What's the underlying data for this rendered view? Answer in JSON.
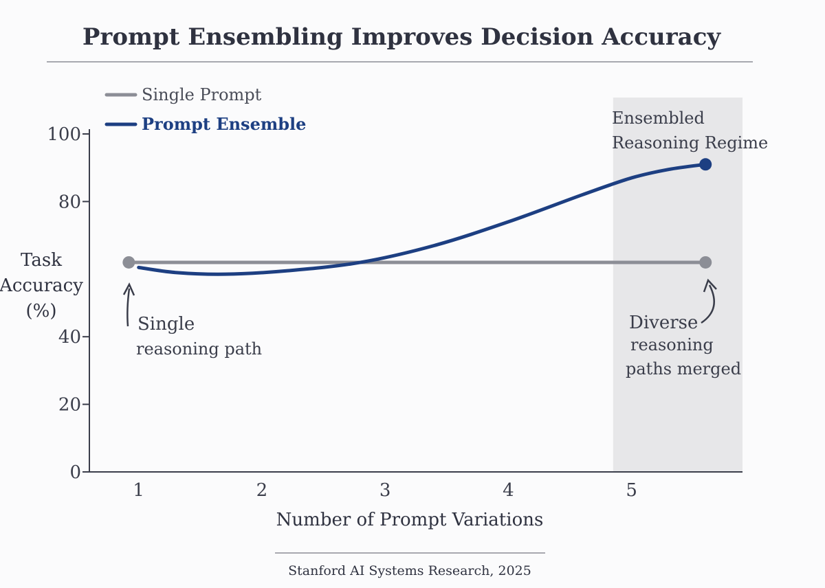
{
  "chart_data": {
    "type": "line",
    "title": "Prompt Ensembling Improves Decision Accuracy",
    "xlabel": "Number of Prompt Variations",
    "ylabel_lines": [
      "Task",
      "Accuracy",
      "(%)"
    ],
    "x_ticks": [
      "1",
      "2",
      "3",
      "4",
      "5"
    ],
    "y_ticks": [
      "100",
      "80",
      "40",
      "20",
      "0"
    ],
    "y_tick_values": [
      100,
      80,
      40,
      20,
      0
    ],
    "xlim": [
      0.6,
      5.9
    ],
    "ylim": [
      0,
      100
    ],
    "legend_position": "top-left",
    "grid": false,
    "series": [
      {
        "name": "Single Prompt",
        "color": "#8c8e96",
        "x": [
          0.92,
          5.6
        ],
        "y": [
          62,
          62
        ]
      },
      {
        "name": "Prompt Ensemble",
        "color": "#1d3f82",
        "x": [
          1.0,
          1.3,
          1.7,
          2.2,
          2.8,
          3.4,
          4.0,
          4.6,
          5.0,
          5.3,
          5.6
        ],
        "y": [
          60.5,
          59,
          58.5,
          59.5,
          62,
          67,
          74,
          82,
          87,
          89.5,
          91
        ]
      }
    ],
    "shaded_region": {
      "x_range": [
        4.85,
        5.9
      ],
      "label_lines": [
        "Ensembled",
        "Reasoning Regime"
      ],
      "color": "#e7e7e9"
    },
    "annotations": [
      {
        "lines": [
          "Single",
          "reasoning path"
        ]
      },
      {
        "lines": [
          "Diverse",
          "reasoning",
          "paths merged"
        ]
      }
    ],
    "source": "Stanford AI Systems Research, 2025"
  }
}
